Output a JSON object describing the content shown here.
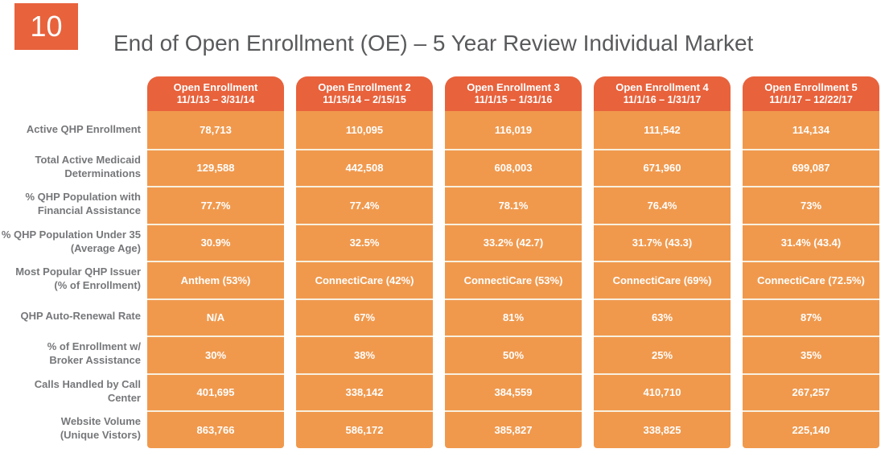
{
  "slide": {
    "number": "10",
    "title": "End of Open Enrollment (OE) – 5 Year Review Individual Market"
  },
  "table": {
    "columns": [
      {
        "title": "Open Enrollment",
        "dates": "11/1/13 – 3/31/14"
      },
      {
        "title": "Open Enrollment 2",
        "dates": "11/15/14 – 2/15/15"
      },
      {
        "title": "Open Enrollment 3",
        "dates": "11/1/15 – 1/31/16"
      },
      {
        "title": "Open Enrollment 4",
        "dates": "11/1/16 – 1/31/17"
      },
      {
        "title": "Open Enrollment 5",
        "dates": "11/1/17 – 12/22/17"
      }
    ],
    "rows": [
      {
        "label": "Active QHP Enrollment",
        "values": [
          "78,713",
          "110,095",
          "116,019",
          "111,542",
          "114,134"
        ]
      },
      {
        "label": "Total Active Medicaid\nDeterminations",
        "values": [
          "129,588",
          "442,508",
          "608,003",
          "671,960",
          "699,087"
        ]
      },
      {
        "label": "% QHP Population with\nFinancial Assistance",
        "values": [
          "77.7%",
          "77.4%",
          "78.1%",
          "76.4%",
          "73%"
        ]
      },
      {
        "label": "% QHP Population Under 35\n(Average Age)",
        "values": [
          "30.9%",
          "32.5%",
          "33.2% (42.7)",
          "31.7% (43.3)",
          "31.4% (43.4)"
        ]
      },
      {
        "label": "Most Popular QHP Issuer\n(% of Enrollment)",
        "values": [
          "Anthem (53%)",
          "ConnectiCare (42%)",
          "ConnectiCare (53%)",
          "ConnectiCare (69%)",
          "ConnectiCare (72.5%)"
        ]
      },
      {
        "label": "QHP Auto-Renewal Rate",
        "values": [
          "N/A",
          "67%",
          "81%",
          "63%",
          "87%"
        ]
      },
      {
        "label": "% of Enrollment w/\nBroker Assistance",
        "values": [
          "30%",
          "38%",
          "50%",
          "25%",
          "35%"
        ]
      },
      {
        "label": "Calls Handled by Call Center",
        "values": [
          "401,695",
          "338,142",
          "384,559",
          "410,710",
          "267,257"
        ]
      },
      {
        "label": "Website Volume\n(Unique Vistors)",
        "values": [
          "863,766",
          "586,172",
          "385,827",
          "338,825",
          "225,140"
        ]
      }
    ]
  },
  "colors": {
    "dark_orange": "#E8623C",
    "light_orange": "#F0994D",
    "separator_cream": "#F8F0DE",
    "title_gray": "#595A5C",
    "label_gray": "#76777A"
  }
}
